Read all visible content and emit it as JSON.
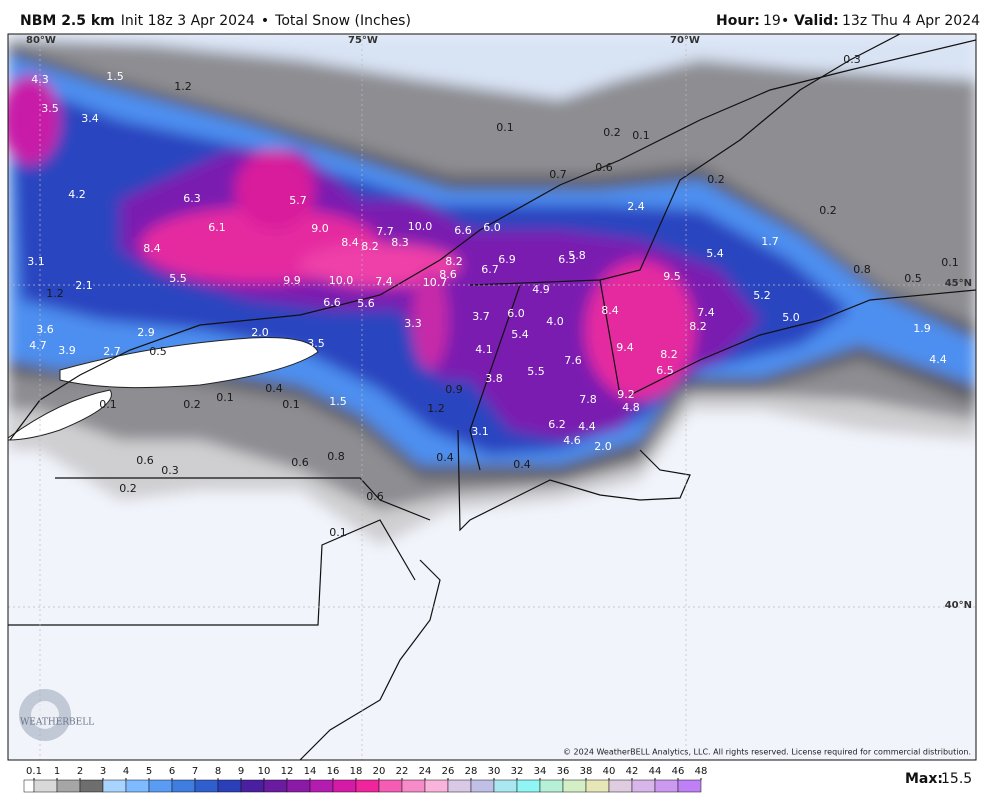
{
  "header": {
    "model": "NBM 2.5 km",
    "init": "Init 18z 3 Apr 2024",
    "bullet": "•",
    "product": "Total Snow (Inches)",
    "hour_label": "Hour:",
    "hour": "19",
    "valid_label": "Valid:",
    "valid": "13z Thu 4 Apr 2024"
  },
  "map": {
    "graticule_labels": [
      "80°W",
      "75°W",
      "70°W",
      "45°N",
      "40°N"
    ],
    "snow_labels": [
      "4.3",
      "1.5",
      "1.2",
      "0.3",
      "3.5",
      "3.4",
      "0.1",
      "0.2",
      "0.1",
      "0.6",
      "0.7",
      "0.2",
      "4.2",
      "6.3",
      "5.7",
      "2.4",
      "0.2",
      "6.1",
      "9.0",
      "7.7",
      "10.0",
      "6.6",
      "6.0",
      "8.4",
      "8.2",
      "8.3",
      "1.7",
      "8.4",
      "5.4",
      "8.2",
      "5.8",
      "6.9",
      "6.7",
      "6.3",
      "3.1",
      "0.8",
      "0.1",
      "9.5",
      "0.5",
      "5.5",
      "9.9",
      "10.0",
      "7.4",
      "10.7",
      "8.6",
      "2.1",
      "1.2",
      "4.9",
      "5.2",
      "6.6",
      "5.6",
      "8.4",
      "7.4",
      "6.0",
      "3.7",
      "4.0",
      "5.0",
      "3.3",
      "8.2",
      "1.9",
      "3.6",
      "5.4",
      "2.9",
      "2.0",
      "4.7",
      "3.9",
      "2.7",
      "0.5",
      "3.5",
      "4.1",
      "9.4",
      "8.2",
      "6.5",
      "7.6",
      "5.5",
      "3.8",
      "4.4",
      "0.4",
      "0.9",
      "9.2",
      "7.8",
      "4.8",
      "1.5",
      "1.2",
      "0.1",
      "0.2",
      "0.1",
      "0.1",
      "6.2",
      "4.4",
      "3.1",
      "4.6",
      "2.0",
      "0.8",
      "0.4",
      "0.6",
      "0.3",
      "0.6",
      "0.4",
      "0.2",
      "0.6",
      "0.1"
    ],
    "copyright": "© 2024 WeatherBELL Analytics, LLC. All rights reserved. License required for commercial distribution.",
    "logo": "WEATHERBELL"
  },
  "legend": {
    "ticks": [
      0.1,
      1,
      2,
      3,
      4,
      5,
      6,
      7,
      8,
      9,
      10,
      12,
      14,
      16,
      18,
      20,
      22,
      24,
      26,
      28,
      30,
      32,
      34,
      36,
      38,
      40,
      42,
      44,
      46,
      48
    ],
    "colors": [
      "#d9d9d9",
      "#a6a6a6",
      "#6e6e6e",
      "#a8d4ff",
      "#7dbaff",
      "#5a9cf5",
      "#3f7ee0",
      "#2f5fcf",
      "#2a3fb8",
      "#4a1fa0",
      "#6a1ba0",
      "#8c1aa8",
      "#b41cb0",
      "#d61aa8",
      "#f0259c",
      "#f55cb3",
      "#f78bc9",
      "#f9b4dc",
      "#d9c9e6",
      "#bfbfe8",
      "#a9e8f0",
      "#8ff5f5",
      "#b6f0d6",
      "#d4efc6",
      "#e6e6b8",
      "#e0cce0",
      "#d8b6ec",
      "#cc99f0",
      "#c080f5"
    ],
    "max_label": "Max:",
    "max": 15.5
  }
}
